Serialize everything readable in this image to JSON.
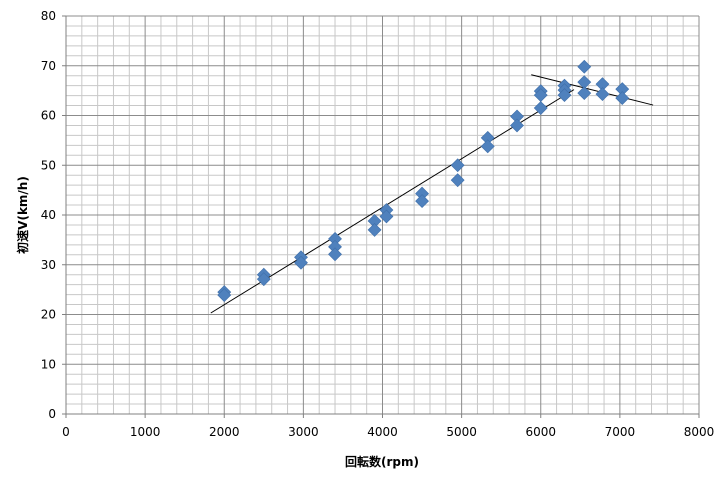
{
  "chart_data": {
    "type": "scatter",
    "xlabel": "回転数(rpm)",
    "ylabel": "初速V(km/h)",
    "xlim": [
      0,
      8000
    ],
    "ylim": [
      0,
      80
    ],
    "x_ticks": [
      "0",
      "1000",
      "2000",
      "3000",
      "4000",
      "5000",
      "6000",
      "7000",
      "8000"
    ],
    "y_ticks": [
      "0",
      "10",
      "20",
      "30",
      "40",
      "50",
      "60",
      "70",
      "80"
    ],
    "grid": "major and minor",
    "legend": "none",
    "marker": "diamond",
    "marker_color": "#4F81BD",
    "series": [
      {
        "values": [
          [
            2000,
            24.5
          ],
          [
            2000,
            23.9
          ],
          [
            2500,
            28.0
          ],
          [
            2500,
            27.1
          ],
          [
            2970,
            31.5
          ],
          [
            2970,
            30.4
          ],
          [
            3400,
            35.2
          ],
          [
            3400,
            33.6
          ],
          [
            3400,
            32.1
          ],
          [
            3900,
            38.8
          ],
          [
            3900,
            37.0
          ],
          [
            4050,
            41.0
          ],
          [
            4050,
            39.7
          ],
          [
            4500,
            44.3
          ],
          [
            4500,
            42.8
          ],
          [
            4950,
            50.0
          ],
          [
            4950,
            47.0
          ],
          [
            5330,
            55.5
          ],
          [
            5330,
            53.8
          ],
          [
            5700,
            59.8
          ],
          [
            5700,
            58.0
          ],
          [
            6000,
            64.9
          ],
          [
            6000,
            64.1
          ],
          [
            6000,
            61.5
          ],
          [
            6300,
            66.0
          ],
          [
            6300,
            65.1
          ],
          [
            6300,
            64.1
          ],
          [
            6550,
            69.8
          ],
          [
            6550,
            66.7
          ],
          [
            6550,
            64.5
          ],
          [
            6780,
            66.3
          ],
          [
            6780,
            64.3
          ],
          [
            7030,
            65.3
          ],
          [
            7030,
            63.5
          ]
        ]
      }
    ],
    "trendlines": [
      {
        "from": [
          1830,
          20.3
        ],
        "to": [
          6420,
          65.2
        ],
        "color": "#000000"
      },
      {
        "from": [
          5880,
          68.2
        ],
        "to": [
          7420,
          62.1
        ],
        "color": "#000000"
      }
    ]
  }
}
